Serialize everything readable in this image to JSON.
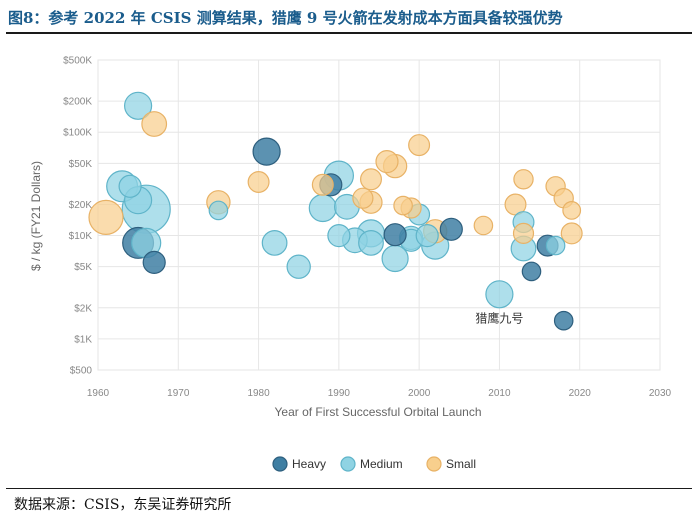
{
  "figure": {
    "title": "图8：参考 2022 年 CSIS 测算结果，猎鹰 9 号火箭在发射成本方面具备较强优势",
    "source": "数据来源：CSIS，东吴证券研究所"
  },
  "chart_data": {
    "type": "scatter",
    "subtype": "bubble",
    "xlabel": "Year of First Successful Orbital Launch",
    "ylabel": "$ / kg (FY21 Dollars)",
    "x_ticks": [
      1960,
      1970,
      1980,
      1990,
      2000,
      2010,
      2020,
      2030
    ],
    "xlim": [
      1960,
      2030
    ],
    "y_scale": "log",
    "ylim": [
      500,
      500000
    ],
    "y_ticks": [
      {
        "value": 500,
        "label": "$500"
      },
      {
        "value": 1000,
        "label": "$1K"
      },
      {
        "value": 2000,
        "label": "$2K"
      },
      {
        "value": 5000,
        "label": "$5K"
      },
      {
        "value": 10000,
        "label": "$10K"
      },
      {
        "value": 20000,
        "label": "$20K"
      },
      {
        "value": 50000,
        "label": "$50K"
      },
      {
        "value": 100000,
        "label": "$100K"
      },
      {
        "value": 200000,
        "label": "$200K"
      },
      {
        "value": 500000,
        "label": "$500K"
      }
    ],
    "grid": true,
    "legend_position": "bottom",
    "annotation": {
      "text": "猎鹰九号",
      "x": 2010,
      "y": 2700
    },
    "series": [
      {
        "name": "Heavy",
        "color": "#3f7fa3",
        "points": [
          {
            "x": 1965,
            "y": 8500,
            "size": 3
          },
          {
            "x": 1967,
            "y": 5500,
            "size": 1
          },
          {
            "x": 1981,
            "y": 65000,
            "size": 2
          },
          {
            "x": 1989,
            "y": 31000,
            "size": 1
          },
          {
            "x": 1997,
            "y": 10200,
            "size": 1
          },
          {
            "x": 2004,
            "y": 11500,
            "size": 1
          },
          {
            "x": 2014,
            "y": 4500,
            "size": 0.5
          },
          {
            "x": 2016,
            "y": 8000,
            "size": 0.8
          },
          {
            "x": 2018,
            "y": 1500,
            "size": 0.5
          }
        ]
      },
      {
        "name": "Medium",
        "color": "#8fd3e3",
        "points": [
          {
            "x": 1966,
            "y": 18000,
            "size": 10
          },
          {
            "x": 1963,
            "y": 30000,
            "size": 3
          },
          {
            "x": 1965,
            "y": 180000,
            "size": 2
          },
          {
            "x": 1965,
            "y": 22000,
            "size": 2
          },
          {
            "x": 1964,
            "y": 30000,
            "size": 1
          },
          {
            "x": 1966,
            "y": 8500,
            "size": 2.5
          },
          {
            "x": 1975,
            "y": 17500,
            "size": 0.5
          },
          {
            "x": 1982,
            "y": 8500,
            "size": 1.5
          },
          {
            "x": 1985,
            "y": 5000,
            "size": 1.2
          },
          {
            "x": 1988,
            "y": 18500,
            "size": 2
          },
          {
            "x": 1990,
            "y": 38000,
            "size": 2.5
          },
          {
            "x": 1990,
            "y": 10000,
            "size": 1
          },
          {
            "x": 1991,
            "y": 19000,
            "size": 1.5
          },
          {
            "x": 1992,
            "y": 9000,
            "size": 1.5
          },
          {
            "x": 1994,
            "y": 10500,
            "size": 2
          },
          {
            "x": 1994,
            "y": 8500,
            "size": 1.5
          },
          {
            "x": 1997,
            "y": 6000,
            "size": 1.8
          },
          {
            "x": 1999,
            "y": 9500,
            "size": 1.2
          },
          {
            "x": 1999,
            "y": 9000,
            "size": 1
          },
          {
            "x": 2000,
            "y": 16000,
            "size": 0.8
          },
          {
            "x": 2001,
            "y": 10000,
            "size": 1
          },
          {
            "x": 2002,
            "y": 8000,
            "size": 2
          },
          {
            "x": 2010,
            "y": 2700,
            "size": 2
          },
          {
            "x": 2013,
            "y": 13500,
            "size": 0.8
          },
          {
            "x": 2013,
            "y": 7500,
            "size": 1.5
          },
          {
            "x": 2017,
            "y": 8000,
            "size": 0.5
          }
        ]
      },
      {
        "name": "Small",
        "color": "#f8cf8d",
        "points": [
          {
            "x": 1961,
            "y": 15000,
            "size": 4
          },
          {
            "x": 1967,
            "y": 120000,
            "size": 1.5
          },
          {
            "x": 1975,
            "y": 21000,
            "size": 1.2
          },
          {
            "x": 1980,
            "y": 33000,
            "size": 0.8
          },
          {
            "x": 1988,
            "y": 31000,
            "size": 0.8
          },
          {
            "x": 1993,
            "y": 23000,
            "size": 0.7
          },
          {
            "x": 1994,
            "y": 35000,
            "size": 0.8
          },
          {
            "x": 1994,
            "y": 21000,
            "size": 1
          },
          {
            "x": 1996,
            "y": 52000,
            "size": 1
          },
          {
            "x": 1997,
            "y": 47000,
            "size": 1.2
          },
          {
            "x": 1998,
            "y": 19500,
            "size": 0.5
          },
          {
            "x": 1999,
            "y": 18500,
            "size": 0.7
          },
          {
            "x": 2000,
            "y": 75000,
            "size": 0.8
          },
          {
            "x": 2002,
            "y": 11000,
            "size": 1.2
          },
          {
            "x": 2008,
            "y": 12500,
            "size": 0.5
          },
          {
            "x": 2012,
            "y": 20000,
            "size": 0.8
          },
          {
            "x": 2013,
            "y": 35000,
            "size": 0.6
          },
          {
            "x": 2013,
            "y": 10500,
            "size": 0.7
          },
          {
            "x": 2017,
            "y": 30000,
            "size": 0.6
          },
          {
            "x": 2018,
            "y": 23000,
            "size": 0.6
          },
          {
            "x": 2019,
            "y": 17500,
            "size": 0.4
          },
          {
            "x": 2019,
            "y": 10500,
            "size": 0.8
          }
        ]
      }
    ]
  }
}
